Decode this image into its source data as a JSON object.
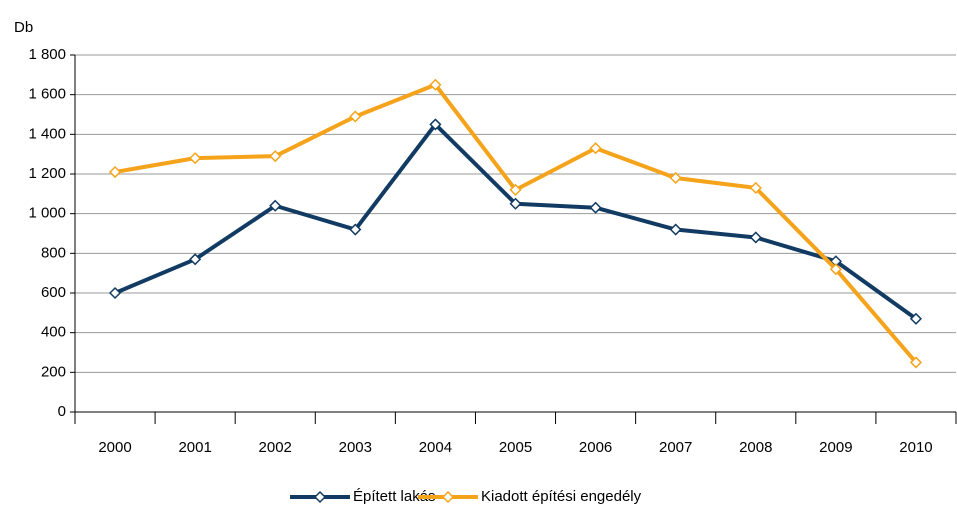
{
  "chart_data": {
    "type": "line",
    "y_label": "Db",
    "categories": [
      "2000",
      "2001",
      "2002",
      "2003",
      "2004",
      "2005",
      "2006",
      "2007",
      "2008",
      "2009",
      "2010"
    ],
    "series": [
      {
        "name": "Épített lakás",
        "color": "#123b63",
        "values": [
          600,
          770,
          1040,
          920,
          1450,
          1050,
          1030,
          920,
          880,
          760,
          470
        ]
      },
      {
        "name": "Kiadott építési engedély",
        "color": "#f5a31a",
        "values": [
          1210,
          1280,
          1290,
          1490,
          1650,
          1120,
          1330,
          1180,
          1130,
          720,
          250
        ]
      }
    ],
    "ylim": [
      0,
      1800
    ],
    "yticks": [
      0,
      200,
      400,
      600,
      800,
      {
        "value": 1000,
        "label": "1 000"
      },
      {
        "value": 1200,
        "label": "1 200"
      },
      {
        "value": 1400,
        "label": "1 400"
      },
      {
        "value": 1600,
        "label": "1 600"
      },
      {
        "value": 1800,
        "label": "1 800"
      }
    ],
    "grid": true
  }
}
